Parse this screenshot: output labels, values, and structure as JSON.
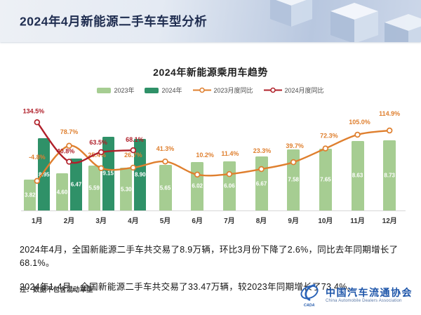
{
  "header": {
    "title": "2024年4月新能源二手车车型分析"
  },
  "chart": {
    "title": "2024年新能源乘用车趋势",
    "legend": [
      {
        "label": "2023年",
        "type": "bar"
      },
      {
        "label": "2024年",
        "type": "bar"
      },
      {
        "label": "2023月度同比",
        "type": "line"
      },
      {
        "label": "2024月度同比",
        "type": "line"
      }
    ]
  },
  "chart_data": {
    "type": "bar+line",
    "unit_bars": "万辆",
    "unit_lines": "%",
    "categories": [
      "1月",
      "2月",
      "3月",
      "4月",
      "5月",
      "6月",
      "7月",
      "8月",
      "9月",
      "10月",
      "11月",
      "12月"
    ],
    "series": [
      {
        "name": "2023年",
        "type": "bar",
        "color": "#a6cd92",
        "values": [
          3.82,
          4.6,
          5.59,
          5.3,
          5.65,
          6.02,
          6.06,
          6.67,
          7.58,
          7.65,
          8.63,
          8.73
        ]
      },
      {
        "name": "2024年",
        "type": "bar",
        "color": "#2f9168",
        "values": [
          8.95,
          6.47,
          9.15,
          8.9,
          null,
          null,
          null,
          null,
          null,
          null,
          null,
          null
        ]
      },
      {
        "name": "2023月度同比",
        "type": "line",
        "color": "#df7f2e",
        "values": [
          -4.8,
          78.7,
          25.4,
          26.7,
          41.3,
          10.2,
          11.4,
          23.3,
          39.7,
          72.3,
          105.0,
          114.9
        ]
      },
      {
        "name": "2024月度同比",
        "type": "line",
        "color": "#b0202a",
        "values": [
          134.5,
          40.8,
          63.5,
          68.1,
          null,
          null,
          null,
          null,
          null,
          null,
          null,
          null
        ]
      }
    ],
    "legend_position": "top",
    "grid": false
  },
  "summary": {
    "line1": "2024年4月，全国新能源二手车共交易了8.9万辆，环比3月份下降了2.6%，同比去年同期增长了68.1%。",
    "line2": "2024年1-4月，全国新能源二手车共交易了33.47万辆，较2023年同期增长了73.4%。"
  },
  "note": "注：数据不包含混动车型",
  "logo": {
    "name_cn": "中国汽车流通协会",
    "name_en": "China Automobile Dealers Association",
    "mark": "CADA"
  }
}
